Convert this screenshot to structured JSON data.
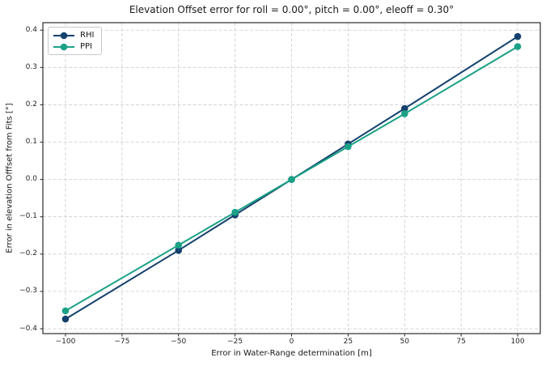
{
  "chart_data": {
    "type": "line",
    "title": "Elevation Offset error for roll = 0.00°, pitch = 0.00°, eleoff = 0.30°",
    "xlabel": "Error in Water-Range determination [m]",
    "ylabel": "Error in elevation Offfset from Fits [°]",
    "xlim": [
      -110,
      110
    ],
    "ylim": [
      -0.413,
      0.42
    ],
    "xticks": [
      -100,
      -75,
      -50,
      -25,
      0,
      25,
      50,
      75,
      100
    ],
    "xtick_labels": [
      "−100",
      "−75",
      "−50",
      "−25",
      "0",
      "25",
      "50",
      "75",
      "100"
    ],
    "yticks": [
      -0.4,
      -0.3,
      -0.2,
      -0.1,
      0.0,
      0.1,
      0.2,
      0.3,
      0.4
    ],
    "ytick_labels": [
      "−0.4",
      "−0.3",
      "−0.2",
      "−0.1",
      "0.0",
      "0.1",
      "0.2",
      "0.3",
      "0.4"
    ],
    "grid": true,
    "grid_style": "dashed",
    "legend_position": "upper left",
    "series": [
      {
        "name": "RHI",
        "color": "#14416d",
        "marker": "circle",
        "x": [
          -100,
          -50,
          -25,
          0,
          25,
          50,
          100
        ],
        "y": [
          -0.374,
          -0.19,
          -0.095,
          0.0,
          0.095,
          0.19,
          0.383
        ]
      },
      {
        "name": "PPI",
        "color": "#1aa186",
        "marker": "circle",
        "x": [
          -100,
          -50,
          -25,
          0,
          25,
          50,
          100
        ],
        "y": [
          -0.352,
          -0.176,
          -0.088,
          0.0,
          0.088,
          0.176,
          0.356
        ]
      }
    ]
  },
  "colors": {
    "grid": "#cccccc",
    "frame": "#2b2b2b",
    "tick": "#262626",
    "background": "#ffffff",
    "legend_border": "#c9c9c9"
  }
}
